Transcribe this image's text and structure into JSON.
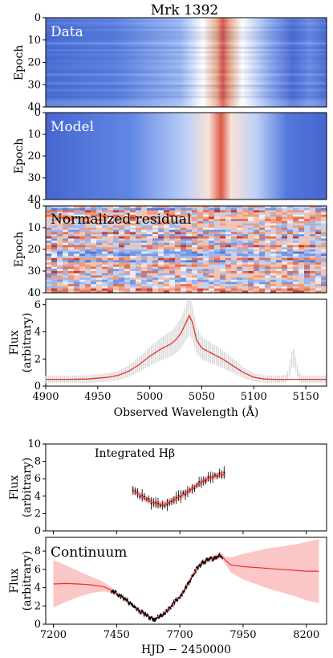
{
  "title": "Mrk 1392",
  "chart_data": [
    {
      "type": "heatmap",
      "panel_label": "Data",
      "ylabel": "Epoch",
      "yticks": [
        0,
        10,
        20,
        30,
        40
      ],
      "ylim": [
        0,
        40
      ],
      "xlim": [
        4900,
        5170
      ],
      "colormap": "coolwarm",
      "line_center": 5038
    },
    {
      "type": "heatmap",
      "panel_label": "Model",
      "ylabel": "Epoch",
      "yticks": [
        0,
        10,
        20,
        30,
        40
      ],
      "ylim": [
        0,
        40
      ],
      "xlim": [
        4900,
        5170
      ],
      "colormap": "coolwarm",
      "line_center": 5038
    },
    {
      "type": "heatmap",
      "panel_label": "Normalized residual",
      "ylabel": "Epoch",
      "yticks": [
        0,
        10,
        20,
        30,
        40
      ],
      "ylim": [
        0,
        40
      ],
      "xlim": [
        4900,
        5170
      ],
      "colormap": "coolwarm"
    },
    {
      "type": "line",
      "ylabel_line1": "Flux",
      "ylabel_line2": "(arbitrary)",
      "xlabel": "Observed Wavelength (Å)",
      "xticks": [
        4900,
        4950,
        5000,
        5050,
        5100,
        5150
      ],
      "yticks": [
        0,
        2,
        4,
        6
      ],
      "xlim": [
        4900,
        5170
      ],
      "ylim": [
        0,
        6.4
      ],
      "colors": {
        "model": "#e8322a",
        "data": "#cccccc"
      },
      "x": [
        4900,
        4920,
        4940,
        4960,
        4970,
        4980,
        4990,
        5000,
        5010,
        5020,
        5025,
        5030,
        5035,
        5038,
        5041,
        5045,
        5050,
        5055,
        5060,
        5070,
        5080,
        5090,
        5100,
        5110,
        5120,
        5130,
        5140,
        5150,
        5160,
        5170
      ],
      "y": [
        0.5,
        0.5,
        0.52,
        0.65,
        0.8,
        1.1,
        1.6,
        2.2,
        2.7,
        3.1,
        3.4,
        3.9,
        4.7,
        5.2,
        4.7,
        3.4,
        2.8,
        2.6,
        2.4,
        2.0,
        1.5,
        1.0,
        0.65,
        0.52,
        0.5,
        0.5,
        0.5,
        0.5,
        0.5,
        0.5
      ]
    },
    {
      "type": "line",
      "annotation": "Integrated Hβ",
      "ylabel_line1": "Flux",
      "ylabel_line2": "(arbitrary)",
      "xticks": [
        7200,
        7450,
        7700,
        7950,
        8200
      ],
      "yticks": [
        0,
        2,
        4,
        6,
        8,
        10
      ],
      "xlim": [
        7170,
        8280
      ],
      "ylim": [
        0,
        10
      ],
      "colors": {
        "model": "#e8322a",
        "band": "#f7b8b8",
        "data": "#000000"
      },
      "x": [
        7510,
        7530,
        7550,
        7570,
        7590,
        7610,
        7630,
        7650,
        7670,
        7690,
        7710,
        7730,
        7750,
        7770,
        7790,
        7810,
        7830,
        7850,
        7870,
        7880
      ],
      "y": [
        4.7,
        4.4,
        4.0,
        3.6,
        3.3,
        3.1,
        3.0,
        3.2,
        3.5,
        3.8,
        4.1,
        4.5,
        4.9,
        5.3,
        5.7,
        6.0,
        6.2,
        6.4,
        6.5,
        6.6
      ]
    },
    {
      "type": "line",
      "panel_label": "Continuum",
      "ylabel_line1": "Flux",
      "ylabel_line2": "(arbitrary)",
      "xlabel": "HJD − 2450000",
      "xticks": [
        7200,
        7450,
        7700,
        7950,
        8200
      ],
      "yticks": [
        0,
        2,
        4,
        6,
        8
      ],
      "xlim": [
        7170,
        8280
      ],
      "ylim": [
        0,
        9.5
      ],
      "colors": {
        "model": "#e8322a",
        "band": "#fbc6c6",
        "data": "#000000"
      },
      "x": [
        7200,
        7250,
        7300,
        7350,
        7400,
        7430,
        7460,
        7490,
        7520,
        7550,
        7580,
        7600,
        7620,
        7640,
        7660,
        7680,
        7700,
        7720,
        7740,
        7760,
        7780,
        7800,
        7820,
        7840,
        7860,
        7880,
        7900,
        7950,
        8000,
        8050,
        8100,
        8150,
        8200,
        8250
      ],
      "y": [
        4.4,
        4.45,
        4.4,
        4.3,
        4.1,
        3.7,
        3.2,
        2.6,
        1.9,
        1.3,
        0.8,
        0.6,
        0.8,
        1.2,
        1.8,
        2.4,
        3.0,
        3.8,
        4.8,
        5.8,
        6.5,
        6.9,
        7.1,
        7.3,
        7.6,
        7.0,
        6.5,
        6.3,
        6.2,
        6.1,
        6.0,
        5.9,
        5.8,
        5.8
      ],
      "band_halfwidth": [
        2.6,
        2.0,
        1.4,
        0.9,
        0.5,
        0.3,
        0.2,
        0.2,
        0.2,
        0.2,
        0.2,
        0.2,
        0.2,
        0.2,
        0.2,
        0.2,
        0.2,
        0.3,
        0.3,
        0.3,
        0.3,
        0.3,
        0.3,
        0.3,
        0.3,
        0.4,
        0.8,
        1.4,
        1.8,
        2.2,
        2.5,
        2.8,
        3.2,
        3.5
      ]
    }
  ]
}
